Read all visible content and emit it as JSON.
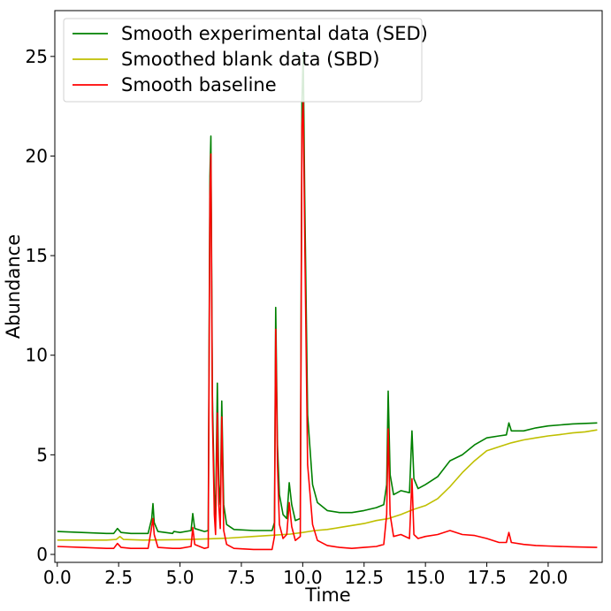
{
  "chart_data": {
    "type": "line",
    "xlabel": "Time",
    "ylabel": "Abundance",
    "xlim": [
      -0.1,
      22.2
    ],
    "ylim": [
      -0.4,
      27.3
    ],
    "xticks": [
      "0.0",
      "2.5",
      "5.0",
      "7.5",
      "10.0",
      "12.5",
      "15.0",
      "17.5",
      "20.0"
    ],
    "yticks": [
      "0",
      "5",
      "10",
      "15",
      "20",
      "25"
    ],
    "legend_position": "upper-left",
    "series": [
      {
        "name": "Smooth experimental data (SED)",
        "color": "#008000",
        "points": [
          [
            0,
            1.15
          ],
          [
            1,
            1.1
          ],
          [
            2,
            1.05
          ],
          [
            2.3,
            1.05
          ],
          [
            2.45,
            1.3
          ],
          [
            2.6,
            1.1
          ],
          [
            3,
            1.05
          ],
          [
            3.7,
            1.05
          ],
          [
            3.85,
            1.8
          ],
          [
            3.9,
            2.55
          ],
          [
            3.95,
            1.6
          ],
          [
            4.1,
            1.15
          ],
          [
            4.7,
            1.05
          ],
          [
            4.75,
            1.15
          ],
          [
            5.0,
            1.1
          ],
          [
            5.45,
            1.2
          ],
          [
            5.52,
            2.05
          ],
          [
            5.6,
            1.3
          ],
          [
            6.0,
            1.15
          ],
          [
            6.15,
            1.2
          ],
          [
            6.22,
            19.0
          ],
          [
            6.26,
            21.0
          ],
          [
            6.32,
            8.0
          ],
          [
            6.4,
            3.0
          ],
          [
            6.45,
            2.0
          ],
          [
            6.52,
            8.6
          ],
          [
            6.58,
            3.5
          ],
          [
            6.64,
            2.5
          ],
          [
            6.7,
            7.7
          ],
          [
            6.78,
            2.5
          ],
          [
            6.9,
            1.5
          ],
          [
            7.2,
            1.25
          ],
          [
            8.0,
            1.2
          ],
          [
            8.75,
            1.2
          ],
          [
            8.85,
            1.6
          ],
          [
            8.9,
            12.4
          ],
          [
            8.97,
            5.5
          ],
          [
            9.05,
            3.0
          ],
          [
            9.2,
            2.0
          ],
          [
            9.35,
            1.8
          ],
          [
            9.45,
            3.6
          ],
          [
            9.55,
            2.5
          ],
          [
            9.7,
            1.7
          ],
          [
            9.9,
            1.8
          ],
          [
            9.97,
            22.7
          ],
          [
            10.02,
            25.3
          ],
          [
            10.08,
            18.0
          ],
          [
            10.2,
            7.0
          ],
          [
            10.4,
            3.5
          ],
          [
            10.6,
            2.6
          ],
          [
            11,
            2.2
          ],
          [
            11.5,
            2.1
          ],
          [
            12.0,
            2.1
          ],
          [
            12.5,
            2.2
          ],
          [
            13.0,
            2.35
          ],
          [
            13.3,
            2.5
          ],
          [
            13.42,
            3.5
          ],
          [
            13.48,
            8.2
          ],
          [
            13.56,
            4.0
          ],
          [
            13.7,
            3.0
          ],
          [
            14.0,
            3.2
          ],
          [
            14.35,
            3.1
          ],
          [
            14.45,
            6.2
          ],
          [
            14.53,
            3.8
          ],
          [
            14.7,
            3.3
          ],
          [
            15.0,
            3.5
          ],
          [
            15.5,
            3.9
          ],
          [
            16.0,
            4.7
          ],
          [
            16.5,
            5.0
          ],
          [
            17.0,
            5.5
          ],
          [
            17.5,
            5.85
          ],
          [
            18.0,
            5.95
          ],
          [
            18.3,
            6.0
          ],
          [
            18.4,
            6.6
          ],
          [
            18.5,
            6.2
          ],
          [
            19.0,
            6.2
          ],
          [
            19.5,
            6.35
          ],
          [
            20.0,
            6.45
          ],
          [
            21.0,
            6.55
          ],
          [
            22.0,
            6.6
          ]
        ]
      },
      {
        "name": "Smoothed blank data (SBD)",
        "color": "#bfbf00",
        "points": [
          [
            0,
            0.72
          ],
          [
            2.0,
            0.72
          ],
          [
            2.4,
            0.75
          ],
          [
            2.55,
            0.9
          ],
          [
            2.7,
            0.75
          ],
          [
            3.5,
            0.72
          ],
          [
            5.0,
            0.74
          ],
          [
            6.0,
            0.77
          ],
          [
            7.0,
            0.82
          ],
          [
            8.0,
            0.9
          ],
          [
            9.0,
            0.98
          ],
          [
            9.5,
            1.02
          ],
          [
            10.0,
            1.1
          ],
          [
            10.5,
            1.2
          ],
          [
            11.0,
            1.25
          ],
          [
            11.5,
            1.35
          ],
          [
            12.0,
            1.45
          ],
          [
            12.5,
            1.55
          ],
          [
            13.0,
            1.7
          ],
          [
            13.5,
            1.8
          ],
          [
            14.0,
            2.0
          ],
          [
            14.5,
            2.25
          ],
          [
            15.0,
            2.45
          ],
          [
            15.5,
            2.8
          ],
          [
            16.0,
            3.4
          ],
          [
            16.5,
            4.1
          ],
          [
            17.0,
            4.7
          ],
          [
            17.5,
            5.2
          ],
          [
            18.0,
            5.4
          ],
          [
            18.5,
            5.6
          ],
          [
            19.0,
            5.75
          ],
          [
            19.5,
            5.85
          ],
          [
            20.0,
            5.95
          ],
          [
            20.5,
            6.02
          ],
          [
            21.0,
            6.1
          ],
          [
            21.5,
            6.15
          ],
          [
            22.0,
            6.25
          ]
        ]
      },
      {
        "name": "Smooth baseline",
        "color": "#ff0000",
        "points": [
          [
            0,
            0.4
          ],
          [
            1,
            0.35
          ],
          [
            2,
            0.3
          ],
          [
            2.3,
            0.3
          ],
          [
            2.45,
            0.55
          ],
          [
            2.6,
            0.35
          ],
          [
            3,
            0.3
          ],
          [
            3.7,
            0.3
          ],
          [
            3.85,
            1.4
          ],
          [
            3.9,
            1.8
          ],
          [
            3.95,
            1.0
          ],
          [
            4.1,
            0.35
          ],
          [
            4.7,
            0.3
          ],
          [
            5.0,
            0.3
          ],
          [
            5.45,
            0.4
          ],
          [
            5.52,
            1.35
          ],
          [
            5.6,
            0.5
          ],
          [
            6.0,
            0.3
          ],
          [
            6.15,
            0.35
          ],
          [
            6.22,
            18.0
          ],
          [
            6.26,
            20.1
          ],
          [
            6.32,
            7.0
          ],
          [
            6.4,
            2.0
          ],
          [
            6.45,
            1.0
          ],
          [
            6.52,
            7.1
          ],
          [
            6.58,
            2.5
          ],
          [
            6.64,
            1.3
          ],
          [
            6.7,
            6.9
          ],
          [
            6.78,
            1.2
          ],
          [
            6.9,
            0.5
          ],
          [
            7.2,
            0.3
          ],
          [
            8.0,
            0.25
          ],
          [
            8.75,
            0.25
          ],
          [
            8.85,
            0.9
          ],
          [
            8.9,
            11.3
          ],
          [
            8.97,
            4.5
          ],
          [
            9.05,
            1.5
          ],
          [
            9.2,
            0.8
          ],
          [
            9.35,
            1.0
          ],
          [
            9.45,
            2.6
          ],
          [
            9.55,
            1.4
          ],
          [
            9.7,
            0.7
          ],
          [
            9.9,
            0.9
          ],
          [
            9.97,
            21.5
          ],
          [
            10.02,
            22.7
          ],
          [
            10.08,
            16.0
          ],
          [
            10.2,
            4.5
          ],
          [
            10.4,
            1.5
          ],
          [
            10.6,
            0.7
          ],
          [
            11,
            0.45
          ],
          [
            11.5,
            0.35
          ],
          [
            12.0,
            0.3
          ],
          [
            12.5,
            0.35
          ],
          [
            13.0,
            0.4
          ],
          [
            13.3,
            0.5
          ],
          [
            13.42,
            2.0
          ],
          [
            13.48,
            6.3
          ],
          [
            13.56,
            2.0
          ],
          [
            13.7,
            0.9
          ],
          [
            14.0,
            1.0
          ],
          [
            14.35,
            0.8
          ],
          [
            14.45,
            3.8
          ],
          [
            14.53,
            1.0
          ],
          [
            14.7,
            0.8
          ],
          [
            15.0,
            0.9
          ],
          [
            15.5,
            1.0
          ],
          [
            16.0,
            1.2
          ],
          [
            16.5,
            1.0
          ],
          [
            17.0,
            0.95
          ],
          [
            17.5,
            0.8
          ],
          [
            18.0,
            0.6
          ],
          [
            18.3,
            0.6
          ],
          [
            18.4,
            1.1
          ],
          [
            18.5,
            0.6
          ],
          [
            19.0,
            0.5
          ],
          [
            19.5,
            0.45
          ],
          [
            20.0,
            0.42
          ],
          [
            21.0,
            0.38
          ],
          [
            22.0,
            0.35
          ]
        ]
      }
    ]
  }
}
